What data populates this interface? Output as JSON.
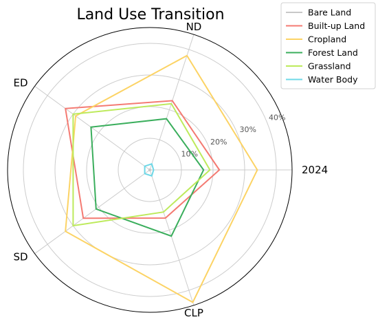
{
  "chart_data": {
    "type": "radar",
    "title": "Land Use Transition",
    "axes": [
      "2024",
      "ND",
      "ED",
      "SD",
      "CLP"
    ],
    "radial_ticks": [
      "10%",
      "20%",
      "30%",
      "40%"
    ],
    "radial_tick_values": [
      10,
      20,
      30,
      40
    ],
    "rlim": [
      0,
      45
    ],
    "grid": true,
    "legend_position": "top-right",
    "series": [
      {
        "name": "Bare Land",
        "color": "#c8c8c8",
        "values": [
          0.3,
          0.3,
          0.3,
          0.3,
          0.3
        ]
      },
      {
        "name": "Built-up Land",
        "color": "#f47a72",
        "values": [
          22,
          23,
          33,
          26,
          16
        ]
      },
      {
        "name": "Cropland",
        "color": "#fcd364",
        "values": [
          34,
          38,
          29,
          33,
          44
        ]
      },
      {
        "name": "Forest Land",
        "color": "#3aae5c",
        "values": [
          17,
          17,
          23,
          21,
          22
        ]
      },
      {
        "name": "Grassland",
        "color": "#bdea5b",
        "values": [
          19,
          22,
          30,
          30,
          14
        ]
      },
      {
        "name": "Water Body",
        "color": "#6ed8e7",
        "values": [
          1.2,
          2,
          2,
          2,
          2
        ]
      }
    ]
  }
}
